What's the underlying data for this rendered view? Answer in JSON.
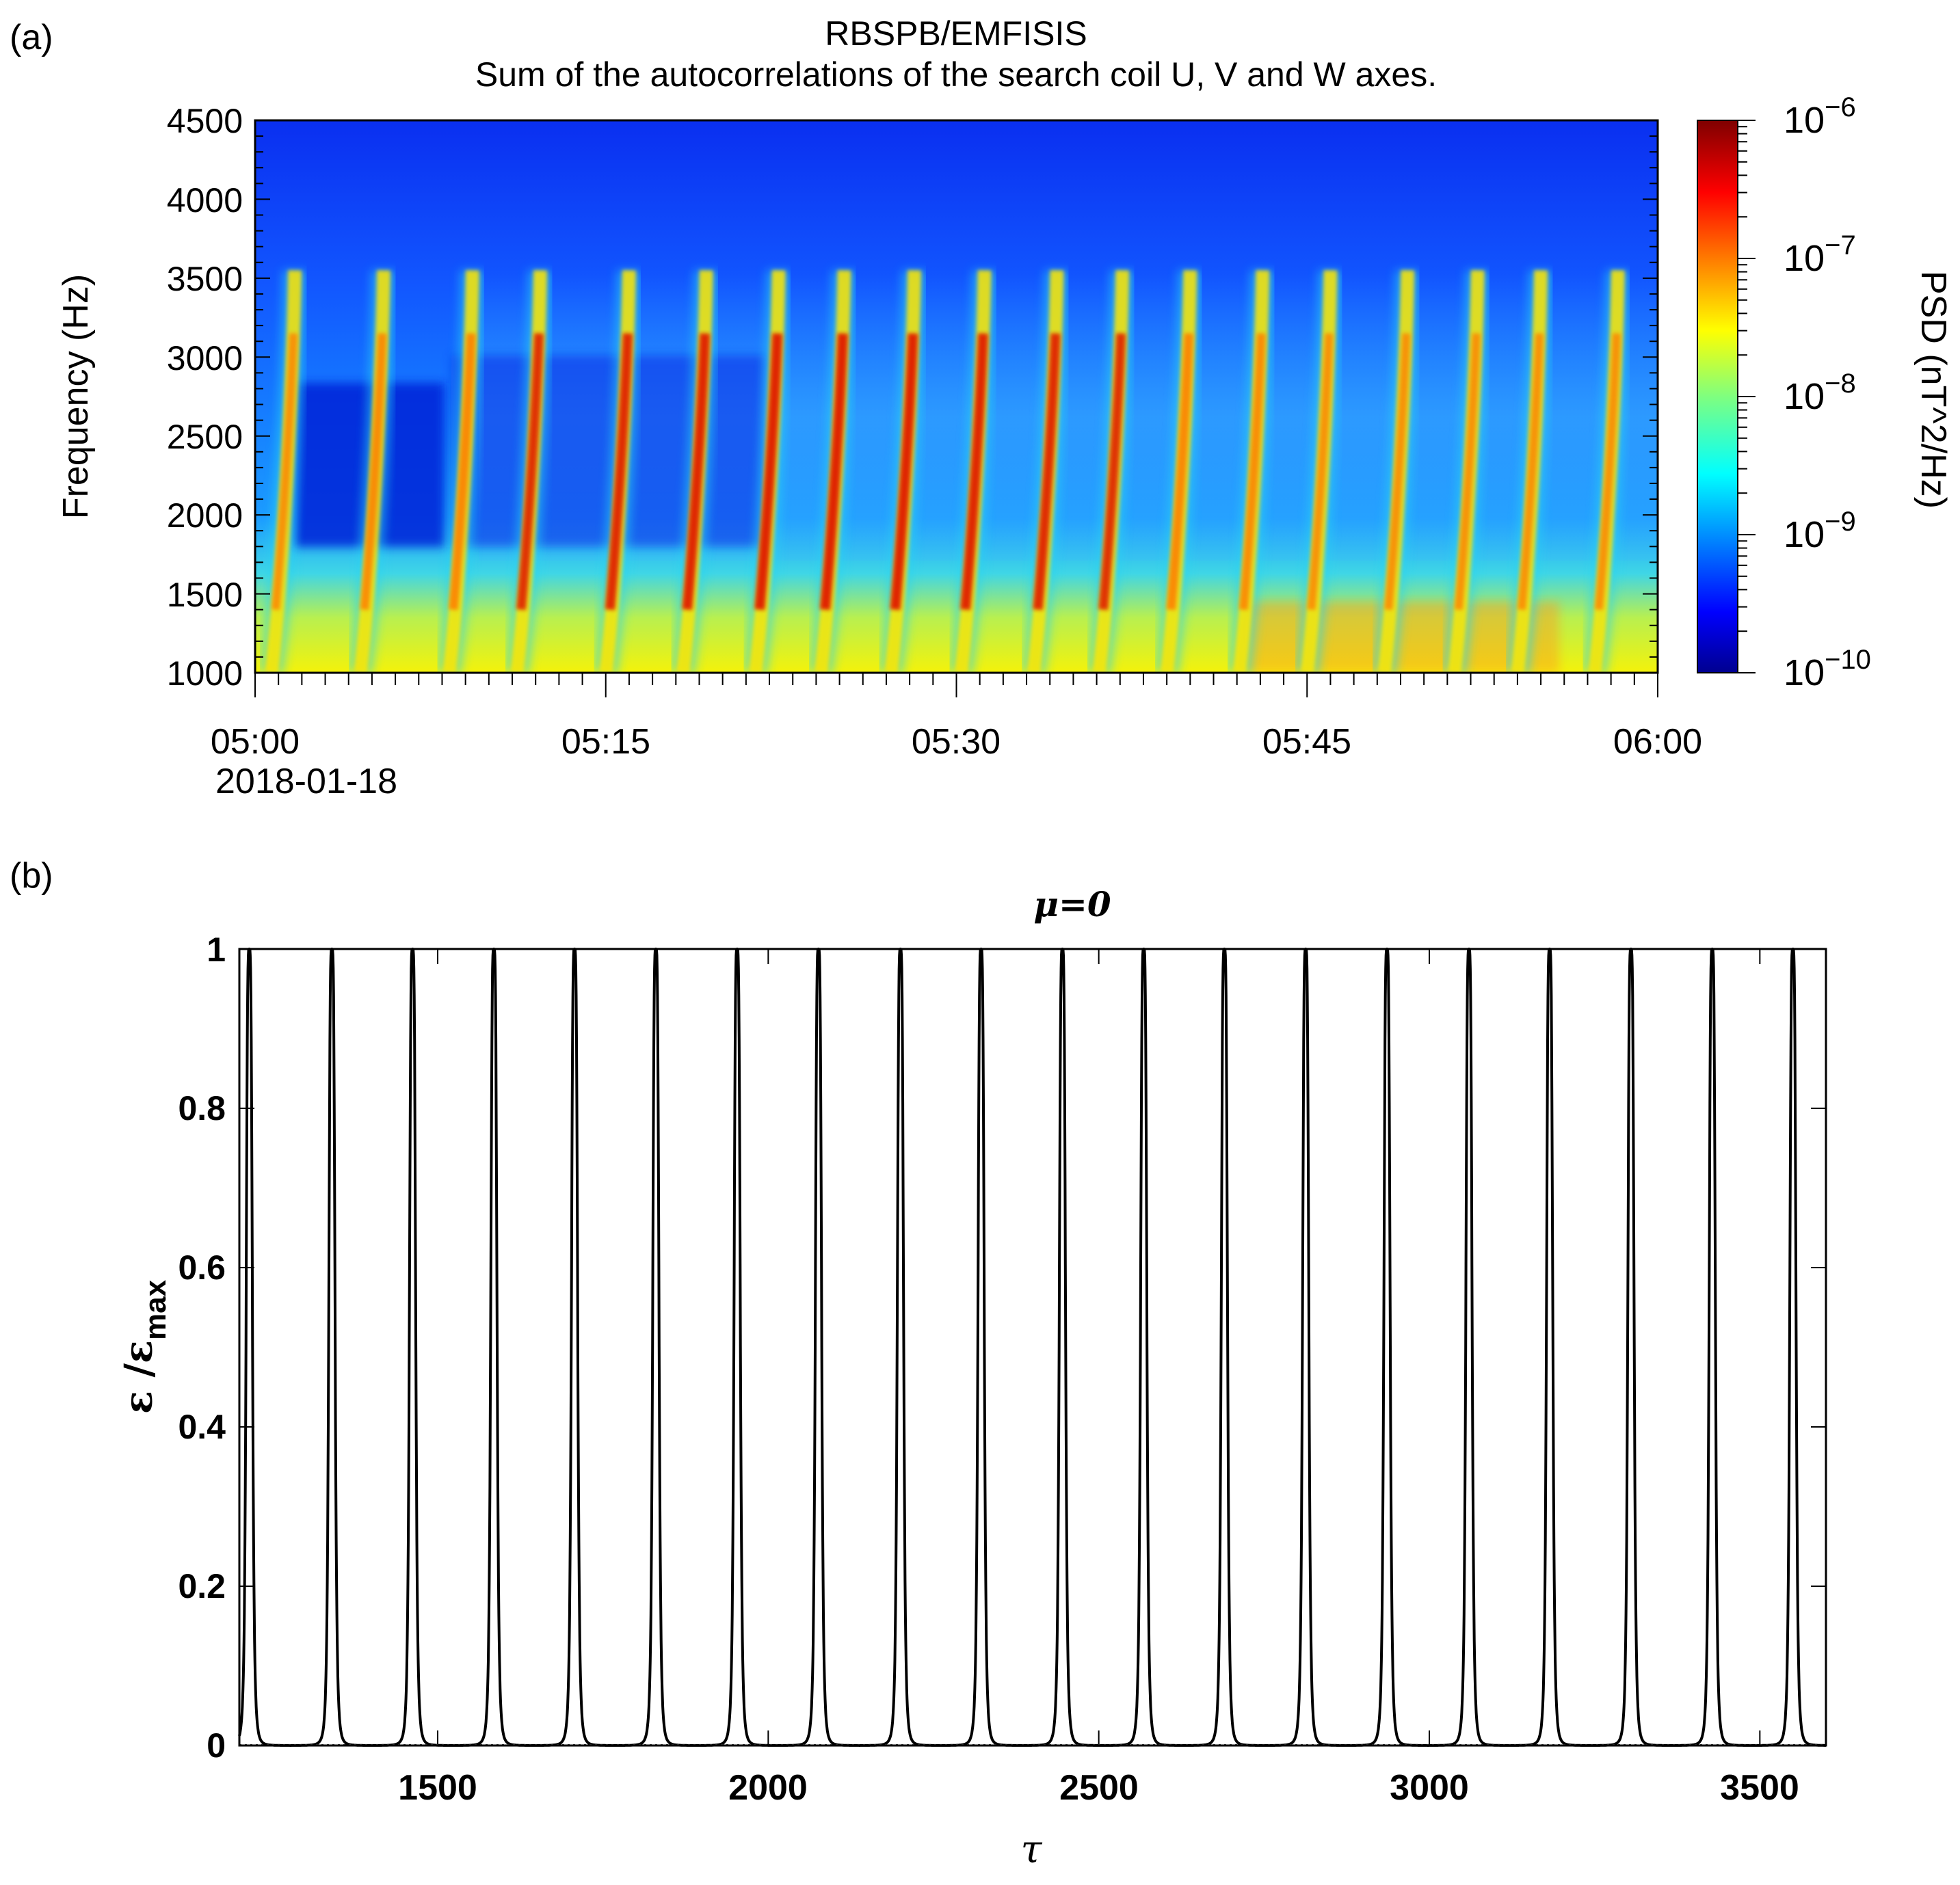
{
  "panels": {
    "a": {
      "label": "(a)",
      "title_line1": "RBSPB/EMFISIS",
      "title_line2": "Sum of the autocorrelations of the search coil U, V and W axes.",
      "ylabel": "Frequency (Hz)",
      "yticks": [
        "1000",
        "1500",
        "2000",
        "2500",
        "3000",
        "3500",
        "4000",
        "4500"
      ],
      "xticks": [
        "05:00",
        "05:15",
        "05:30",
        "05:45",
        "06:00"
      ],
      "date_label": "2018-01-18",
      "colorbar": {
        "label": "PSD (nT^2/Hz)",
        "ticks": [
          {
            "base": "10",
            "exp": "−6"
          },
          {
            "base": "10",
            "exp": "−7"
          },
          {
            "base": "10",
            "exp": "−8"
          },
          {
            "base": "10",
            "exp": "−9"
          },
          {
            "base": "10",
            "exp": "−10"
          }
        ]
      }
    },
    "b": {
      "label": "(b)",
      "title": "μ=0",
      "ylabel_main": "ε /ε",
      "ylabel_sub": "max",
      "xlabel": "τ",
      "yticks": [
        "0",
        "0.2",
        "0.4",
        "0.6",
        "0.8",
        "1"
      ],
      "xticks": [
        "1500",
        "2000",
        "2500",
        "3000",
        "3500"
      ]
    }
  },
  "chart_data": [
    {
      "type": "heatmap",
      "title": "RBSPB/EMFISIS Sum of the autocorrelations of the search coil U, V and W axes.",
      "xlabel": "",
      "ylabel": "Frequency (Hz)",
      "x_range": [
        "2018-01-18 05:00",
        "2018-01-18 06:00"
      ],
      "ylim": [
        1000,
        4500
      ],
      "colorbar": {
        "label": "PSD (nT^2/Hz)",
        "scale": "log",
        "range": [
          1e-10,
          1e-06
        ],
        "colormap": "jet"
      },
      "rising_tone_elements_minutes_after_0500": [
        1.7,
        5.5,
        9.3,
        12.2,
        16.0,
        19.3,
        22.4,
        25.2,
        28.2,
        31.2,
        34.3,
        37.1,
        40.0,
        43.1,
        46.0,
        49.3,
        52.3,
        55.0,
        58.3
      ],
      "element_frequency_range_hz": [
        1000,
        3550
      ]
    },
    {
      "type": "line",
      "title": "μ=0",
      "xlabel": "τ",
      "ylabel": "ε/εmax",
      "xlim": [
        1200,
        3600
      ],
      "ylim": [
        0,
        1
      ],
      "series": [
        {
          "peak_x": [
            1215,
            1340,
            1462,
            1585,
            1707,
            1830,
            1953,
            2076,
            2200,
            2322,
            2445,
            2568,
            2690,
            2813,
            2936,
            3060,
            3182,
            3305,
            3428,
            3550
          ],
          "peak_y": 1,
          "baseline_y": 0
        }
      ]
    }
  ]
}
